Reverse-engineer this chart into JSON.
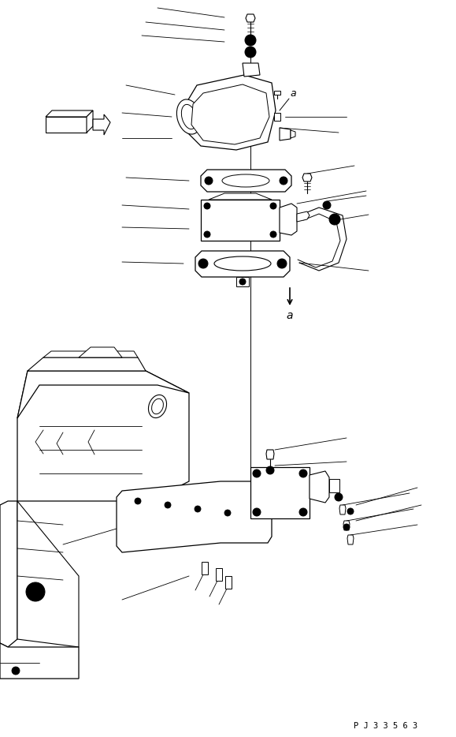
{
  "bg_color": "#ffffff",
  "line_color": "#000000",
  "fig_width": 5.79,
  "fig_height": 9.34,
  "dpi": 100,
  "part_code": "P J 3 3 5 6 3"
}
